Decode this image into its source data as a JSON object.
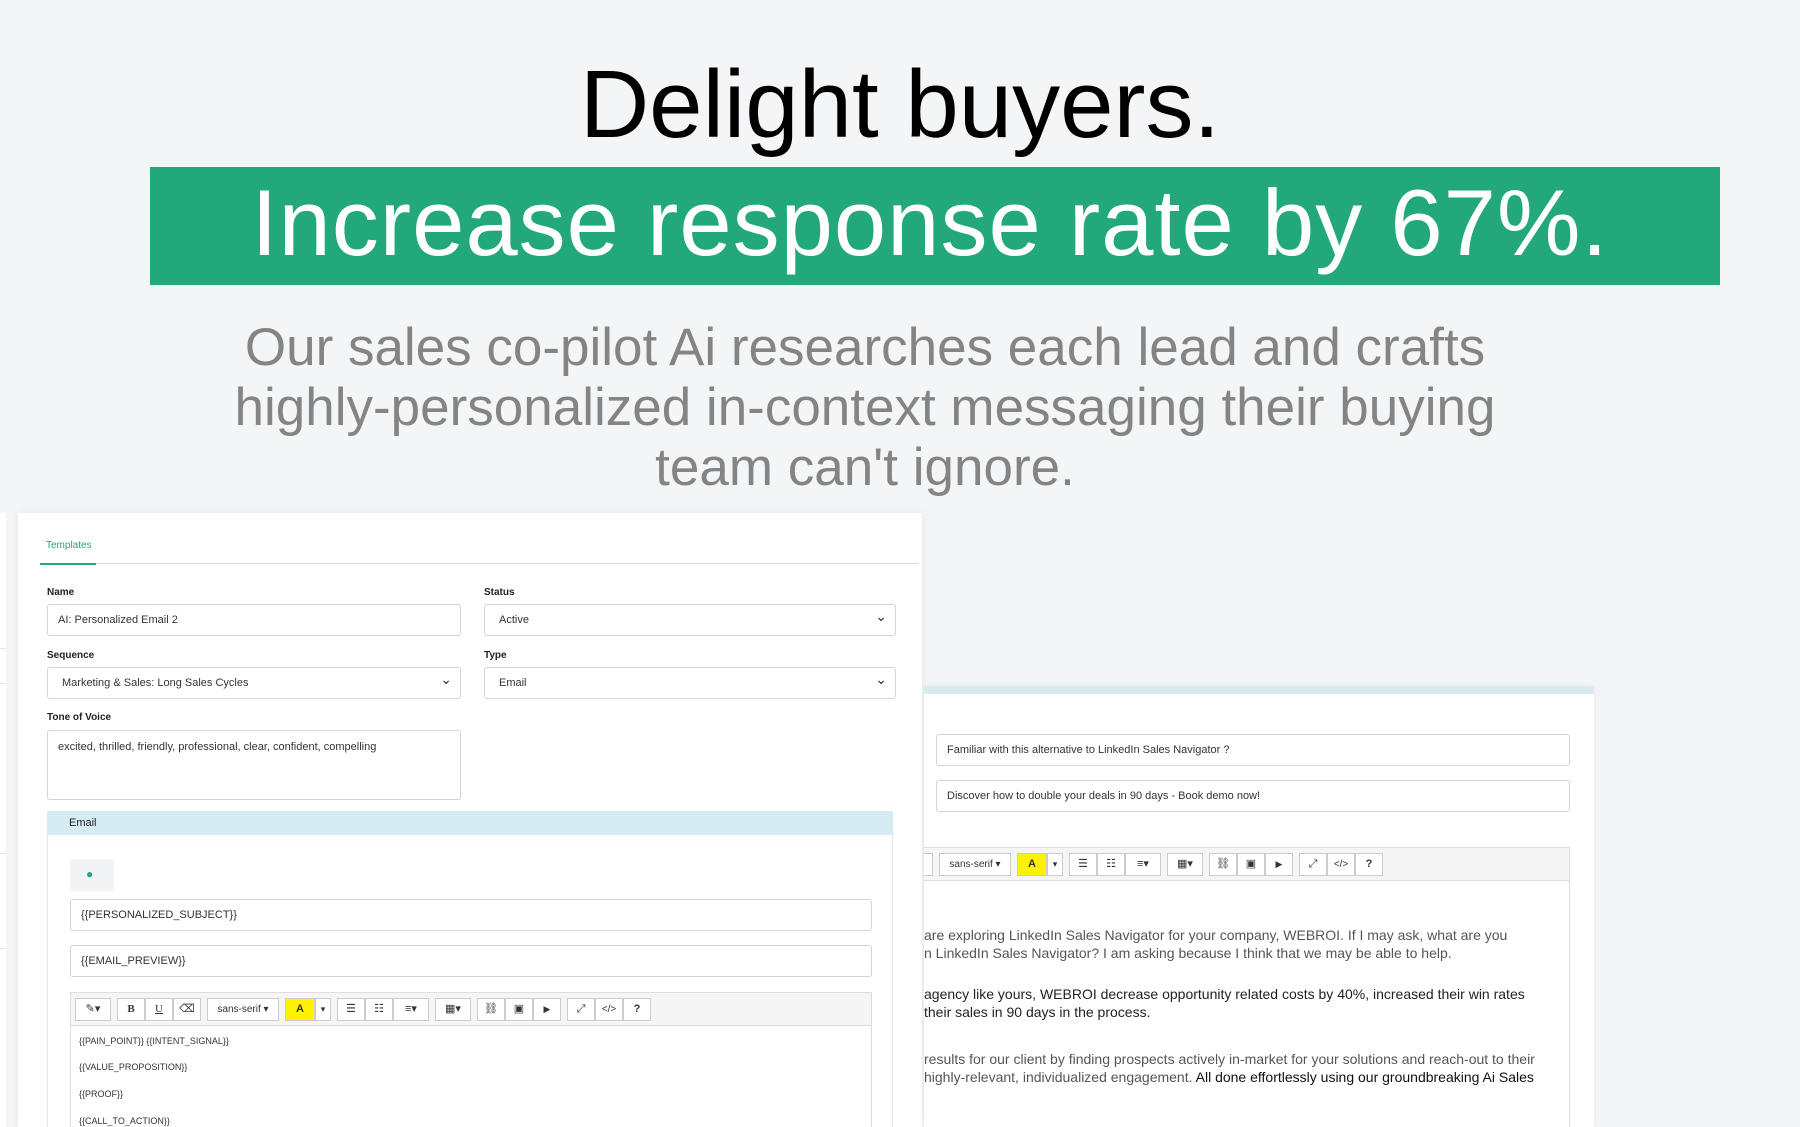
{
  "hero": {
    "headline": "Delight buyers.",
    "banner": "Increase response rate by 67%.",
    "subtext": "Our sales co-pilot Ai researches each lead and crafts highly-personalized in-context messaging their buying team can't ignore."
  },
  "colors": {
    "accent": "#22a87a",
    "panel": "#d7ebf2"
  },
  "form": {
    "tab": "Templates",
    "name_label": "Name",
    "name_value": "AI: Personalized Email 2",
    "status_label": "Status",
    "status_value": "Active",
    "sequence_label": "Sequence",
    "sequence_value": "Marketing & Sales: Long Sales Cycles",
    "type_label": "Type",
    "type_value": "Email",
    "tone_label": "Tone of Voice",
    "tone_value": "excited, thrilled, friendly, professional, clear, confident, compelling"
  },
  "email": {
    "header": "Email",
    "tag_icon": "tag-icon",
    "subject": "{{PERSONALIZED_SUBJECT}}",
    "preview": "{{EMAIL_PREVIEW}}",
    "toolbar": {
      "magic": "✎▾",
      "bold": "B",
      "underline": "U",
      "eraser": "⌫",
      "font": "sans-serif ▾",
      "color": "A",
      "color_caret": "▾",
      "ul": "☰",
      "ol": "☷",
      "align": "≡▾",
      "table": "▦▾",
      "link": "⛓",
      "image": "▣",
      "video": "▶",
      "fullscreen": "⤢",
      "code": "</>",
      "help": "?"
    },
    "lines": [
      "{{PAIN_POINT}} {{INTENT_SIGNAL}}",
      "{{VALUE_PROPOSITION}}",
      "{{PROOF}}",
      "{{CALL_TO_ACTION}}"
    ]
  },
  "preview": {
    "subject": "Familiar with this alternative to LinkedIn Sales Navigator ?",
    "preheader": "Discover how to double your deals in 90 days - Book demo now!",
    "toolbar_font": "sans-serif ▾",
    "body": {
      "p1_l1": "are exploring LinkedIn Sales Navigator for your company, WEBROI. If I may ask, what are you",
      "p1_l2": "n LinkedIn Sales Navigator? I am asking because I think that we may be able to help.",
      "p2_l1": "agency like yours, WEBROI decrease opportunity related costs by 40%, increased their win rates",
      "p2_l2": " their sales in 90 days in the process.",
      "p3_l1": "results for our client by finding prospects actively in-market for your solutions and reach-out to their",
      "p3_l2a": "highly-relevant, individualized engagement. ",
      "p3_l2b": "All done effortlessly using our groundbreaking Ai Sales"
    }
  }
}
